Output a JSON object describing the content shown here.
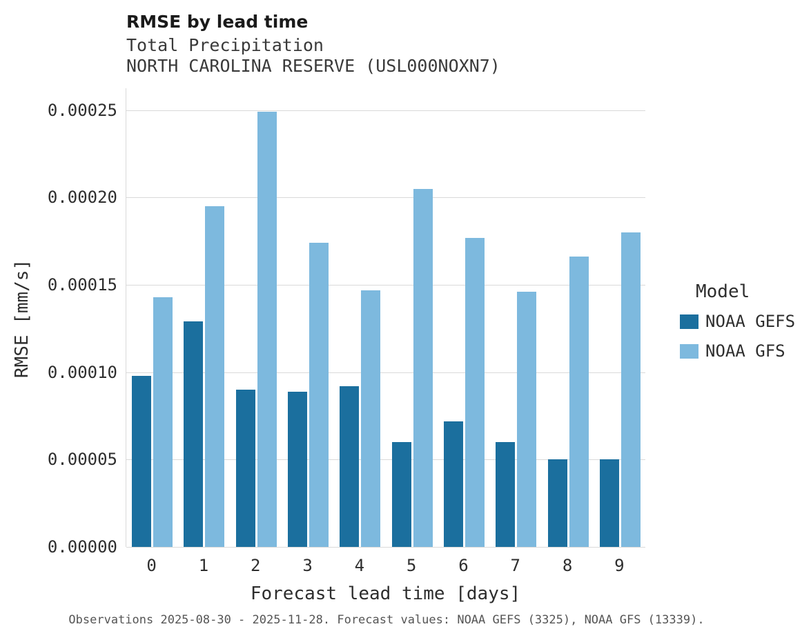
{
  "header": {
    "title": "RMSE by lead time",
    "subtitle_variable": "Total Precipitation",
    "subtitle_station": "NORTH CAROLINA RESERVE (USL000NOXN7)"
  },
  "chart_data": {
    "type": "bar",
    "title": "RMSE by lead time",
    "subtitle": "Total Precipitation — NORTH CAROLINA RESERVE (USL000NOXN7)",
    "categories": [
      "0",
      "1",
      "2",
      "3",
      "4",
      "5",
      "6",
      "7",
      "8",
      "9"
    ],
    "series": [
      {
        "name": "NOAA GEFS",
        "color": "#1b6f9e",
        "values": [
          9.8e-05,
          0.000129,
          9e-05,
          8.9e-05,
          9.2e-05,
          6e-05,
          7.2e-05,
          6e-05,
          5e-05,
          5e-05
        ]
      },
      {
        "name": "NOAA GFS",
        "color": "#7db9de",
        "values": [
          0.000143,
          0.000195,
          0.000249,
          0.000174,
          0.000147,
          0.000205,
          0.000177,
          0.000146,
          0.000166,
          0.00018
        ]
      }
    ],
    "xlabel": "Forecast lead time [days]",
    "ylabel": "RMSE [mm/s]",
    "ylim": [
      0,
      0.0002625
    ],
    "yticks": [
      0,
      5e-05,
      0.0001,
      0.00015,
      0.0002,
      0.00025
    ],
    "ytick_labels": [
      "0.00000",
      "0.00005",
      "0.00010",
      "0.00015",
      "0.00020",
      "0.00025"
    ],
    "grid": true,
    "legend_title": "Model",
    "legend_position": "right"
  },
  "caption": "Observations 2025-08-30 - 2025-11-28. Forecast values: NOAA GEFS (3325), NOAA GFS (13339)."
}
